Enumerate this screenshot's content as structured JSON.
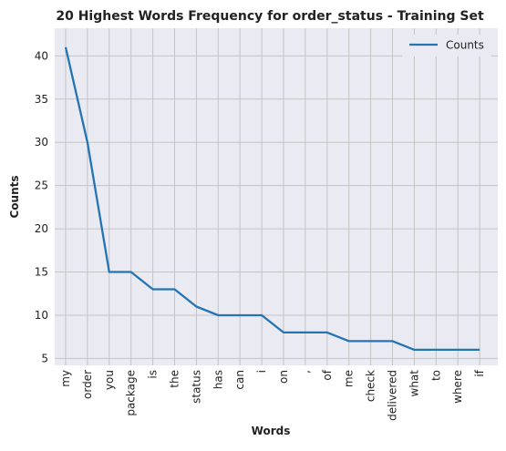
{
  "chart_data": {
    "type": "line",
    "title": "20 Highest Words Frequency for order_status - Training Set",
    "xlabel": "Words",
    "ylabel": "Counts",
    "categories": [
      "my",
      "order",
      "you",
      "package",
      "is",
      "the",
      "status",
      "has",
      "can",
      "i",
      "on",
      ",",
      "of",
      "me",
      "check",
      "delivered",
      "what",
      "to",
      "where",
      "if"
    ],
    "series": [
      {
        "name": "Counts",
        "values": [
          41,
          30,
          15,
          15,
          13,
          13,
          11,
          10,
          10,
          10,
          8,
          8,
          8,
          7,
          7,
          7,
          6,
          6,
          6,
          6
        ],
        "color": "#2474b4"
      }
    ],
    "ylim": [
      4.2,
      43.2
    ],
    "yticks": [
      5,
      10,
      15,
      20,
      25,
      30,
      35,
      40
    ],
    "grid": true,
    "legend": "top-right",
    "colors": {
      "plot_bg": "#eaeaf2",
      "grid": "#c4c4c4",
      "line": "#2474b4"
    }
  }
}
